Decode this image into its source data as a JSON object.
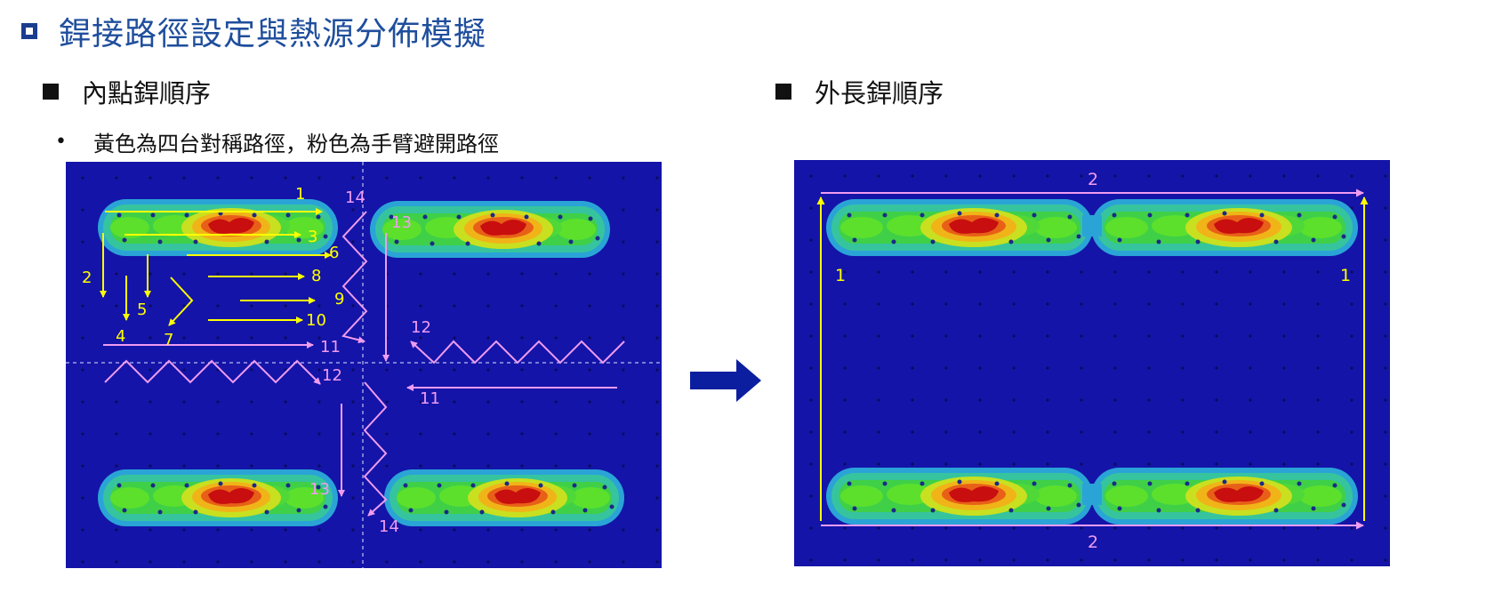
{
  "title": "銲接路徑設定與熱源分佈模擬",
  "left_section": {
    "heading": "內點銲順序",
    "note": "黃色為四台對稱路徑，粉色為手臂避開路徑"
  },
  "right_section": {
    "heading": "外長銲順序"
  },
  "colors": {
    "title": "#1f4e9c",
    "plate": "#1414a8",
    "yellow_path": "#ffff00",
    "pink_path": "#f09cf0",
    "arrow": "#0c1ea0"
  },
  "left_labels": {
    "l1": "1",
    "l2": "2",
    "l3": "3",
    "l4": "4",
    "l5": "5",
    "l6": "6",
    "l7": "7",
    "l8": "8",
    "l9": "9",
    "l10": "10",
    "l11": "11",
    "l12": "12",
    "r11": "11",
    "r12": "12",
    "r13": "13",
    "r14": "14",
    "b13": "13",
    "b14": "14",
    "t14": "14",
    "t13": "13"
  },
  "right_labels": {
    "top2": "2",
    "bottom2": "2",
    "left1": "1",
    "right1": "1"
  }
}
